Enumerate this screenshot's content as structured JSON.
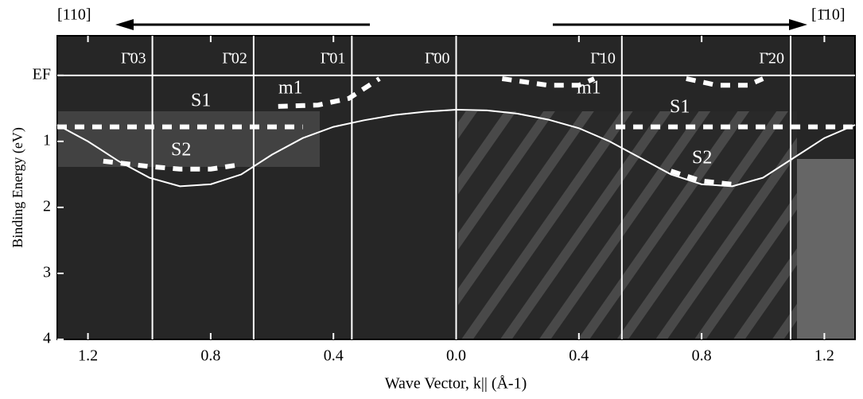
{
  "chart_data": {
    "type": "spectral-image",
    "xlabel": "Wave Vector, k|| (Å-1)",
    "ylabel": "Binding Energy (eV)",
    "direction_left": "[110]",
    "direction_right": "[1̄10]",
    "xlim": [
      -1.3,
      1.3
    ],
    "ylim": [
      -0.6,
      4
    ],
    "xticks": [
      {
        "value": -1.2,
        "label": "1.2"
      },
      {
        "value": -0.8,
        "label": "0.8"
      },
      {
        "value": -0.4,
        "label": "0.4"
      },
      {
        "value": 0,
        "label": "0.0"
      },
      0.4,
      0.8,
      1.2
    ],
    "yticks": [
      {
        "value": 0,
        "label": "EF"
      },
      1,
      2,
      3,
      4
    ],
    "zone_centers": {
      "labels": [
        "Γ̄03",
        "Γ̄02",
        "Γ̄01",
        "Γ̄00",
        "Γ̄10",
        "Γ̄20"
      ],
      "x": [
        -0.99,
        -0.66,
        -0.34,
        0,
        0.54,
        1.09
      ]
    },
    "lines": [
      {
        "style": "solid",
        "color": "#ffffff",
        "x": [
          -1.3,
          -1.2,
          -1.1,
          -1.0,
          -0.9,
          -0.8,
          -0.7,
          -0.6,
          -0.5,
          -0.4,
          -0.3,
          -0.2,
          -0.1,
          0,
          0.1,
          0.2,
          0.3,
          0.4,
          0.5,
          0.6,
          0.7,
          0.8,
          0.9,
          1.0,
          1.1,
          1.2,
          1.3
        ],
        "y": [
          0.75,
          1.0,
          1.3,
          1.55,
          1.68,
          1.65,
          1.5,
          1.2,
          0.95,
          0.78,
          0.68,
          0.6,
          0.55,
          0.52,
          0.53,
          0.58,
          0.67,
          0.8,
          1.0,
          1.25,
          1.5,
          1.65,
          1.68,
          1.55,
          1.25,
          0.95,
          0.75
        ]
      },
      {
        "style": "dashed",
        "color": "#ffffff",
        "x": [
          -1.3,
          -0.5
        ],
        "y": [
          0.78,
          0.78
        ]
      },
      {
        "style": "dashed",
        "color": "#ffffff",
        "x": [
          0.52,
          1.3
        ],
        "y": [
          0.78,
          0.78
        ]
      },
      {
        "style": "dashed",
        "color": "#ffffff",
        "x": [
          -1.15,
          -1.0,
          -0.9,
          -0.8,
          -0.7
        ],
        "y": [
          1.3,
          1.38,
          1.42,
          1.42,
          1.35
        ]
      },
      {
        "style": "dashed",
        "color": "#ffffff",
        "x": [
          0.7,
          0.8,
          0.9
        ],
        "y": [
          1.45,
          1.6,
          1.65
        ]
      },
      {
        "style": "dashed",
        "color": "#ffffff",
        "x": [
          -0.58,
          -0.45,
          -0.35,
          -0.25
        ],
        "y": [
          0.47,
          0.45,
          0.35,
          0.05
        ]
      },
      {
        "style": "dashed",
        "color": "#ffffff",
        "x": [
          0.15,
          0.3,
          0.4,
          0.45
        ],
        "y": [
          0.05,
          0.15,
          0.15,
          0.05
        ]
      },
      {
        "style": "dashed",
        "color": "#ffffff",
        "x": [
          0.75,
          0.85,
          0.95,
          1.0
        ],
        "y": [
          0.05,
          0.15,
          0.15,
          0.05
        ]
      }
    ],
    "annotations": [
      "S1",
      "S2",
      "m1",
      "m1",
      "S1",
      "S2"
    ]
  }
}
